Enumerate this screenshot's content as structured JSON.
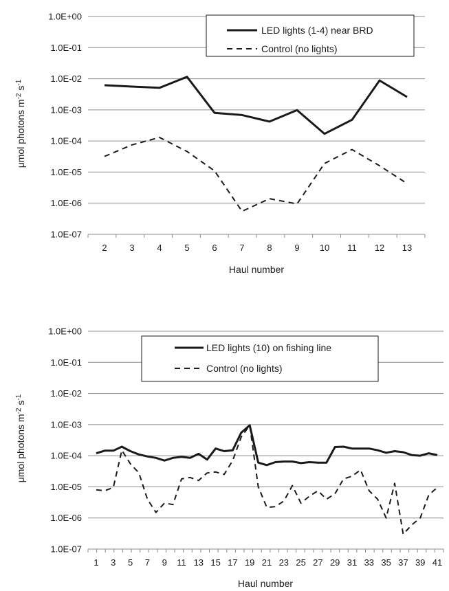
{
  "chart_data": [
    {
      "type": "line",
      "y_scale": "log",
      "ylim": [
        1e-07,
        1
      ],
      "xlabel": "Haul number",
      "ylabel": "μmol photons m-2 s-1",
      "ylabel_main": "μmol photons m",
      "ylabel_exp1": "-2",
      "ylabel_mid": " s",
      "ylabel_exp2": "-1",
      "y_tick_labels": [
        "1.0E+00",
        "1.0E-01",
        "1.0E-02",
        "1.0E-03",
        "1.0E-04",
        "1.0E-05",
        "1.0E-06",
        "1.0E-07"
      ],
      "categories": [
        "2",
        "3",
        "4",
        "5",
        "6",
        "7",
        "8",
        "9",
        "10",
        "11",
        "12",
        "13"
      ],
      "grid": true,
      "legend_position": "top-right",
      "series": [
        {
          "name": "LED lights (1-4) near BRD",
          "style": "solid",
          "values": [
            0.0062,
            0.0056,
            0.0051,
            0.0115,
            0.0008,
            0.00068,
            0.00042,
            0.00098,
            0.00017,
            0.00048,
            0.0088,
            0.0026
          ]
        },
        {
          "name": "Control (no lights)",
          "style": "dashed",
          "values": [
            3.2e-05,
            7.5e-05,
            0.00013,
            4.6e-05,
            1.1e-05,
            5.5e-07,
            1.4e-06,
            9.5e-07,
            1.9e-05,
            5.3e-05,
            1.6e-05,
            4.3e-06
          ]
        }
      ]
    },
    {
      "type": "line",
      "y_scale": "log",
      "ylim": [
        1e-07,
        1
      ],
      "xlabel": "Haul number",
      "ylabel": "μmol photons m-2 s-1",
      "ylabel_main": "μmol photons m",
      "ylabel_exp1": "-2",
      "ylabel_mid": " s",
      "ylabel_exp2": "-1",
      "y_tick_labels": [
        "1.0E+00",
        "1.0E-01",
        "1.0E-02",
        "1.0E-03",
        "1.0E-04",
        "1.0E-05",
        "1.0E-06",
        "1.0E-07"
      ],
      "x": [
        1,
        2,
        3,
        4,
        5,
        6,
        7,
        8,
        9,
        10,
        11,
        12,
        13,
        14,
        15,
        16,
        17,
        18,
        19,
        20,
        21,
        22,
        23,
        24,
        25,
        26,
        27,
        28,
        29,
        30,
        31,
        32,
        33,
        34,
        35,
        36,
        37,
        38,
        39,
        40,
        41
      ],
      "x_tick_labels": [
        "1",
        "3",
        "5",
        "7",
        "9",
        "11",
        "13",
        "15",
        "17",
        "19",
        "21",
        "23",
        "25",
        "27",
        "29",
        "31",
        "33",
        "35",
        "37",
        "39",
        "41"
      ],
      "grid": true,
      "legend_position": "top-right",
      "series": [
        {
          "name": "LED lights (10) on fishing line",
          "style": "solid",
          "values": [
            0.00012,
            0.000145,
            0.000145,
            0.000195,
            0.00014,
            0.00011,
            9.5e-05,
            8.5e-05,
            7e-05,
            8.5e-05,
            9.2e-05,
            8.5e-05,
            0.000115,
            7.5e-05,
            0.00017,
            0.00014,
            0.00015,
            0.00055,
            0.00095,
            6e-05,
            5e-05,
            6.2e-05,
            6.5e-05,
            6.5e-05,
            5.8e-05,
            6.2e-05,
            6e-05,
            6e-05,
            0.00019,
            0.000195,
            0.00017,
            0.00017,
            0.00017,
            0.00015,
            0.000125,
            0.00014,
            0.00013,
            0.000105,
            0.0001,
            0.00012,
            0.000105
          ]
        },
        {
          "name": "Control (no lights)",
          "style": "dashed",
          "values": [
            8e-06,
            7.5e-06,
            9.5e-06,
            0.00015,
            5.5e-05,
            2.8e-05,
            4e-06,
            1.5e-06,
            3e-06,
            2.7e-06,
            1.8e-05,
            2e-05,
            1.6e-05,
            2.8e-05,
            3e-05,
            2.5e-05,
            7e-05,
            0.0004,
            0.00095,
            1e-05,
            2.2e-06,
            2.3e-06,
            3.5e-06,
            1.1e-05,
            3e-06,
            5e-06,
            7.5e-06,
            4e-06,
            6e-06,
            1.8e-05,
            2.2e-05,
            3.5e-05,
            7.5e-06,
            4e-06,
            1e-06,
            1.3e-05,
            3e-07,
            6e-07,
            1e-06,
            5.5e-06,
            9.5e-06
          ]
        }
      ]
    }
  ]
}
